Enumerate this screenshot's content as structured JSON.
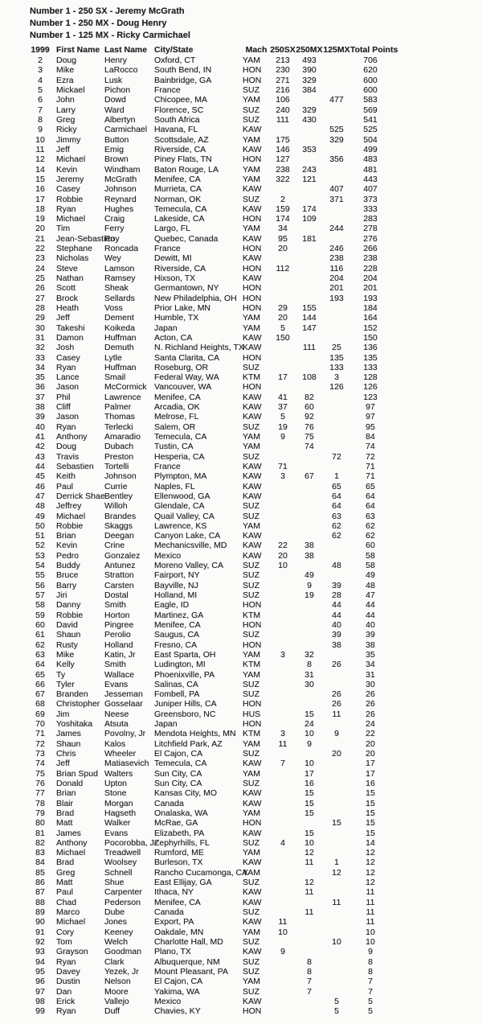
{
  "colors": {
    "text": "#1f1f1f",
    "background": "#fbfbfa"
  },
  "page": {
    "titles": [
      "Number 1 - 250 SX - Jeremy McGrath",
      "Number 1 - 250 MX - Doug Henry",
      "Number 1 - 125 MX - Ricky Carmichael"
    ]
  },
  "table": {
    "columns": [
      "1999",
      "First Name",
      "Last Name",
      "City/State",
      "Mach",
      "250SX",
      "250MX",
      "125MX",
      "Total Points"
    ],
    "rows": [
      [
        "2",
        "Doug",
        "Henry",
        "Oxford, CT",
        "YAM",
        "213",
        "493",
        "",
        "706"
      ],
      [
        "3",
        "Mike",
        "LaRocco",
        "South Bend, IN",
        "HON",
        "230",
        "390",
        "",
        "620"
      ],
      [
        "4",
        "Ezra",
        "Lusk",
        "Bainbridge, GA",
        "HON",
        "271",
        "329",
        "",
        "600"
      ],
      [
        "5",
        "Mickael",
        "Pichon",
        "France",
        "SUZ",
        "216",
        "384",
        "",
        "600"
      ],
      [
        "6",
        "John",
        "Dowd",
        "Chicopee, MA",
        "YAM",
        "106",
        "",
        "477",
        "583"
      ],
      [
        "7",
        "Larry",
        "Ward",
        "Florence, SC",
        "SUZ",
        "240",
        "329",
        "",
        "569"
      ],
      [
        "8",
        "Greg",
        "Albertyn",
        "South Africa",
        "SUZ",
        "111",
        "430",
        "",
        "541"
      ],
      [
        "9",
        "Ricky",
        "Carmichael",
        "Havana, FL",
        "KAW",
        "",
        "",
        "525",
        "525"
      ],
      [
        "10",
        "Jimmy",
        "Button",
        "Scottsdale, AZ",
        "YAM",
        "175",
        "",
        "329",
        "504"
      ],
      [
        "11",
        "Jeff",
        "Emig",
        "Riverside, CA",
        "KAW",
        "146",
        "353",
        "",
        "499"
      ],
      [
        "12",
        "Michael",
        "Brown",
        "Piney Flats, TN",
        "HON",
        "127",
        "",
        "356",
        "483"
      ],
      [
        "14",
        "Kevin",
        "Windham",
        "Baton Rouge, LA",
        "YAM",
        "238",
        "243",
        "",
        "481"
      ],
      [
        "15",
        "Jeremy",
        "McGrath",
        "Menifee, CA",
        "YAM",
        "322",
        "121",
        "",
        "443"
      ],
      [
        "16",
        "Casey",
        "Johnson",
        "Murrieta, CA",
        "KAW",
        "",
        "",
        "407",
        "407"
      ],
      [
        "17",
        "Robbie",
        "Reynard",
        "Norman, OK",
        "SUZ",
        "2",
        "",
        "371",
        "373"
      ],
      [
        "18",
        "Ryan",
        "Hughes",
        "Temecula, CA",
        "KAW",
        "159",
        "174",
        "",
        "333"
      ],
      [
        "19",
        "Michael",
        "Craig",
        "Lakeside, CA",
        "HON",
        "174",
        "109",
        "",
        "283"
      ],
      [
        "20",
        "Tim",
        "Ferry",
        "Largo, FL",
        "YAM",
        "34",
        "",
        "244",
        "278"
      ],
      [
        "21",
        "Jean-Sebastien",
        "Roy",
        "Quebec, Canada",
        "KAW",
        "95",
        "181",
        "",
        "276"
      ],
      [
        "22",
        "Stephane",
        "Roncada",
        "France",
        "HON",
        "20",
        "",
        "246",
        "266"
      ],
      [
        "23",
        "Nicholas",
        "Wey",
        "Dewitt, MI",
        "KAW",
        "",
        "",
        "238",
        "238"
      ],
      [
        "24",
        "Steve",
        "Lamson",
        "Riverside, CA",
        "HON",
        "112",
        "",
        "116",
        "228"
      ],
      [
        "25",
        "Nathan",
        "Ramsey",
        "Hixson, TX",
        "KAW",
        "",
        "",
        "204",
        "204"
      ],
      [
        "26",
        "Scott",
        "Sheak",
        "Germantown, NY",
        "HON",
        "",
        "",
        "201",
        "201"
      ],
      [
        "27",
        "Brock",
        "Sellards",
        "New Philadelphia, OH",
        "HON",
        "",
        "",
        "193",
        "193"
      ],
      [
        "28",
        "Heath",
        "Voss",
        "Prior Lake, MN",
        "HON",
        "29",
        "155",
        "",
        "184"
      ],
      [
        "29",
        "Jeff",
        "Dement",
        "Humble, TX",
        "YAM",
        "20",
        "144",
        "",
        "164"
      ],
      [
        "30",
        "Takeshi",
        "Koikeda",
        "Japan",
        "YAM",
        "5",
        "147",
        "",
        "152"
      ],
      [
        "31",
        "Damon",
        "Huffman",
        "Acton, CA",
        "KAW",
        "150",
        "",
        "",
        "150"
      ],
      [
        "32",
        "Josh",
        "Demuth",
        "N. Richland Heights, TX",
        "KAW",
        "",
        "111",
        "25",
        "136"
      ],
      [
        "33",
        "Casey",
        "Lytle",
        "Santa Clarita, CA",
        "HON",
        "",
        "",
        "135",
        "135"
      ],
      [
        "34",
        "Ryan",
        "Huffman",
        "Roseburg, OR",
        "SUZ",
        "",
        "",
        "133",
        "133"
      ],
      [
        "35",
        "Lance",
        "Smail",
        "Federal Way, WA",
        "KTM",
        "17",
        "108",
        "3",
        "128"
      ],
      [
        "36",
        "Jason",
        "McCormick",
        "Vancouver, WA",
        "HON",
        "",
        "",
        "126",
        "126"
      ],
      [
        "37",
        "Phil",
        "Lawrence",
        "Menifee, CA",
        "KAW",
        "41",
        "82",
        "",
        "123"
      ],
      [
        "38",
        "Cliff",
        "Palmer",
        "Arcadia, OK",
        "KAW",
        "37",
        "60",
        "",
        "97"
      ],
      [
        "39",
        "Jason",
        "Thomas",
        "Melrose, FL",
        "KAW",
        "5",
        "92",
        "",
        "97"
      ],
      [
        "40",
        "Ryan",
        "Terlecki",
        "Salem, OR",
        "SUZ",
        "19",
        "76",
        "",
        "95"
      ],
      [
        "41",
        "Anthony",
        "Amaradio",
        "Temecula, CA",
        "YAM",
        "9",
        "75",
        "",
        "84"
      ],
      [
        "42",
        "Doug",
        "Dubach",
        "Tustin, CA",
        "YAM",
        "",
        "74",
        "",
        "74"
      ],
      [
        "43",
        "Travis",
        "Preston",
        "Hesperia, CA",
        "SUZ",
        "",
        "",
        "72",
        "72"
      ],
      [
        "44",
        "Sebastien",
        "Tortelli",
        "France",
        "KAW",
        "71",
        "",
        "",
        "71"
      ],
      [
        "45",
        "Keith",
        "Johnson",
        "Plympton, MA",
        "KAW",
        "3",
        "67",
        "1",
        "71"
      ],
      [
        "46",
        "Paul",
        "Currie",
        "Naples, FL",
        "KAW",
        "",
        "",
        "65",
        "65"
      ],
      [
        "47",
        "Derrick Shae",
        "Bentley",
        "Ellenwood, GA",
        "KAW",
        "",
        "",
        "64",
        "64"
      ],
      [
        "48",
        "Jeffrey",
        "Willoh",
        "Glendale, CA",
        "SUZ",
        "",
        "",
        "64",
        "64"
      ],
      [
        "49",
        "Michael",
        "Brandes",
        "Quail Valley, CA",
        "SUZ",
        "",
        "",
        "63",
        "63"
      ],
      [
        "50",
        "Robbie",
        "Skaggs",
        "Lawrence, KS",
        "YAM",
        "",
        "",
        "62",
        "62"
      ],
      [
        "51",
        "Brian",
        "Deegan",
        "Canyon Lake, CA",
        "KAW",
        "",
        "",
        "62",
        "62"
      ],
      [
        "52",
        "Kevin",
        "Crine",
        "Mechanicsville, MD",
        "KAW",
        "22",
        "38",
        "",
        "60"
      ],
      [
        "53",
        "Pedro",
        "Gonzalez",
        "Mexico",
        "KAW",
        "20",
        "38",
        "",
        "58"
      ],
      [
        "54",
        "Buddy",
        "Antunez",
        "Moreno Valley, CA",
        "SUZ",
        "10",
        "",
        "48",
        "58"
      ],
      [
        "55",
        "Bruce",
        "Stratton",
        "Fairport, NY",
        "SUZ",
        "",
        "49",
        "",
        "49"
      ],
      [
        "56",
        "Barry",
        "Carsten",
        "Bayville, NJ",
        "SUZ",
        "",
        "9",
        "39",
        "48"
      ],
      [
        "57",
        "Jiri",
        "Dostal",
        "Holland, MI",
        "SUZ",
        "",
        "19",
        "28",
        "47"
      ],
      [
        "58",
        "Danny",
        "Smith",
        "Eagle, ID",
        "HON",
        "",
        "",
        "44",
        "44"
      ],
      [
        "59",
        "Robbie",
        "Horton",
        "Martinez, GA",
        "KTM",
        "",
        "",
        "44",
        "44"
      ],
      [
        "60",
        "David",
        "Pingree",
        "Menifee, CA",
        "HON",
        "",
        "",
        "40",
        "40"
      ],
      [
        "61",
        "Shaun",
        "Perolio",
        "Saugus, CA",
        "SUZ",
        "",
        "",
        "39",
        "39"
      ],
      [
        "62",
        "Rusty",
        "Holland",
        "Fresno, CA",
        "HON",
        "",
        "",
        "38",
        "38"
      ],
      [
        "63",
        "Mike",
        "Katin, Jr",
        "East Sparta, OH",
        "YAM",
        "3",
        "32",
        "",
        "35"
      ],
      [
        "64",
        "Kelly",
        "Smith",
        "Ludington, MI",
        "KTM",
        "",
        "8",
        "26",
        "34"
      ],
      [
        "65",
        "Ty",
        "Wallace",
        "Phoenixville, PA",
        "YAM",
        "",
        "31",
        "",
        "31"
      ],
      [
        "66",
        "Tyler",
        "Evans",
        "Salinas, CA",
        "SUZ",
        "",
        "30",
        "",
        "30"
      ],
      [
        "67",
        "Branden",
        "Jesseman",
        "Fombell, PA",
        "SUZ",
        "",
        "",
        "26",
        "26"
      ],
      [
        "68",
        "Christopher",
        "Gosselaar",
        "Juniper Hills, CA",
        "HON",
        "",
        "",
        "26",
        "26"
      ],
      [
        "69",
        "Jim",
        "Neese",
        "Greensboro, NC",
        "HUS",
        "",
        "15",
        "11",
        "26"
      ],
      [
        "70",
        "Yoshitaka",
        "Atsuta",
        "Japan",
        "HON",
        "",
        "24",
        "",
        "24"
      ],
      [
        "71",
        "James",
        "Povolny, Jr",
        "Mendota Heights, MN",
        "KTM",
        "3",
        "10",
        "9",
        "22"
      ],
      [
        "72",
        "Shaun",
        "Kalos",
        "Litchfield Park, AZ",
        "YAM",
        "11",
        "9",
        "",
        "20"
      ],
      [
        "73",
        "Chris",
        "Wheeler",
        "El Cajon, CA",
        "SUZ",
        "",
        "",
        "20",
        "20"
      ],
      [
        "74",
        "Jeff",
        "Matiasevich",
        "Temecula, CA",
        "KAW",
        "7",
        "10",
        "",
        "17"
      ],
      [
        "75",
        "Brian Spud",
        "Walters",
        "Sun City, CA",
        "YAM",
        "",
        "17",
        "",
        "17"
      ],
      [
        "76",
        "Donald",
        "Upton",
        "Sun City, CA",
        "SUZ",
        "",
        "16",
        "",
        "16"
      ],
      [
        "77",
        "Brian",
        "Stone",
        "Kansas City, MO",
        "KAW",
        "",
        "15",
        "",
        "15"
      ],
      [
        "78",
        "Blair",
        "Morgan",
        "Canada",
        "KAW",
        "",
        "15",
        "",
        "15"
      ],
      [
        "79",
        "Brad",
        "Hagseth",
        "Onalaska, WA",
        "YAM",
        "",
        "15",
        "",
        "15"
      ],
      [
        "80",
        "Matt",
        "Walker",
        "McRae, GA",
        "HON",
        "",
        "",
        "15",
        "15"
      ],
      [
        "81",
        "James",
        "Evans",
        "Elizabeth, PA",
        "KAW",
        "",
        "15",
        "",
        "15"
      ],
      [
        "82",
        "Anthony",
        "Pocorobba, Jr",
        "Zephyrhills, FL",
        "SUZ",
        "4",
        "10",
        "",
        "14"
      ],
      [
        "83",
        "Michael",
        "Treadwell",
        "Rumford, ME",
        "YAM",
        "",
        "12",
        "",
        "12"
      ],
      [
        "84",
        "Brad",
        "Woolsey",
        "Burleson, TX",
        "KAW",
        "",
        "11",
        "1",
        "12"
      ],
      [
        "85",
        "Greg",
        "Schnell",
        "Rancho Cucamonga, CA",
        "YAM",
        "",
        "",
        "12",
        "12"
      ],
      [
        "86",
        "Matt",
        "Shue",
        "East Ellijay, GA",
        "SUZ",
        "",
        "12",
        "",
        "12"
      ],
      [
        "87",
        "Paul",
        "Carpenter",
        "Ithaca, NY",
        "KAW",
        "",
        "11",
        "",
        "11"
      ],
      [
        "88",
        "Chad",
        "Pederson",
        "Menifee, CA",
        "KAW",
        "",
        "",
        "11",
        "11"
      ],
      [
        "89",
        "Marco",
        "Dube",
        "Canada",
        "SUZ",
        "",
        "11",
        "",
        "11"
      ],
      [
        "90",
        "Michael",
        "Jones",
        "Export, PA",
        "KAW",
        "11",
        "",
        "",
        "11"
      ],
      [
        "91",
        "Cory",
        "Keeney",
        "Oakdale, MN",
        "YAM",
        "10",
        "",
        "",
        "10"
      ],
      [
        "92",
        "Tom",
        "Welch",
        "Charlotte Hall, MD",
        "SUZ",
        "",
        "",
        "10",
        "10"
      ],
      [
        "93",
        "Grayson",
        "Goodman",
        "Plano, TX",
        "KAW",
        "9",
        "",
        "",
        "9"
      ],
      [
        "94",
        "Ryan",
        "Clark",
        "Albuquerque, NM",
        "SUZ",
        "",
        "8",
        "",
        "8"
      ],
      [
        "95",
        "Davey",
        "Yezek, Jr",
        "Mount Pleasant, PA",
        "SUZ",
        "",
        "8",
        "",
        "8"
      ],
      [
        "96",
        "Dustin",
        "Nelson",
        "El Cajon, CA",
        "YAM",
        "",
        "7",
        "",
        "7"
      ],
      [
        "97",
        "Dan",
        "Moore",
        "Yakima, WA",
        "SUZ",
        "",
        "7",
        "",
        "7"
      ],
      [
        "98",
        "Erick",
        "Vallejo",
        "Mexico",
        "KAW",
        "",
        "",
        "5",
        "5"
      ],
      [
        "99",
        "Ryan",
        "Duff",
        "Chavies, KY",
        "HON",
        "",
        "",
        "5",
        "5"
      ]
    ]
  }
}
